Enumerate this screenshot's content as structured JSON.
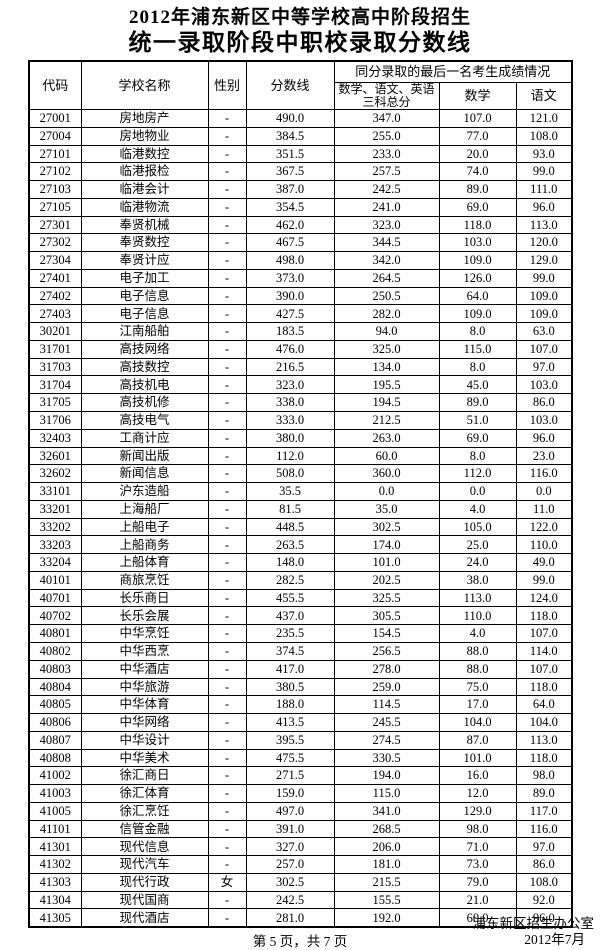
{
  "title": {
    "line1": "2012年浦东新区中等学校高中阶段招生",
    "line2": "统一录取阶段中职校录取分数线"
  },
  "table": {
    "headers": {
      "code": "代码",
      "school": "学校名称",
      "gender": "性别",
      "cutoff": "分数线",
      "group": "同分录取的最后一名考生成绩情况",
      "total3": "数学、语文、英语三科总分",
      "math": "数学",
      "chinese": "语文"
    },
    "rows": [
      [
        "27001",
        "房地房产",
        "-",
        "490.0",
        "347.0",
        "107.0",
        "121.0"
      ],
      [
        "27004",
        "房地物业",
        "-",
        "384.5",
        "255.0",
        "77.0",
        "108.0"
      ],
      [
        "27101",
        "临港数控",
        "-",
        "351.5",
        "233.0",
        "20.0",
        "93.0"
      ],
      [
        "27102",
        "临港报检",
        "-",
        "367.5",
        "257.5",
        "74.0",
        "99.0"
      ],
      [
        "27103",
        "临港会计",
        "-",
        "387.0",
        "242.5",
        "89.0",
        "111.0"
      ],
      [
        "27105",
        "临港物流",
        "-",
        "354.5",
        "241.0",
        "69.0",
        "96.0"
      ],
      [
        "27301",
        "奉贤机械",
        "-",
        "462.0",
        "323.0",
        "118.0",
        "113.0"
      ],
      [
        "27302",
        "奉贤数控",
        "-",
        "467.5",
        "344.5",
        "103.0",
        "120.0"
      ],
      [
        "27304",
        "奉贤计应",
        "-",
        "498.0",
        "342.0",
        "109.0",
        "129.0"
      ],
      [
        "27401",
        "电子加工",
        "-",
        "373.0",
        "264.5",
        "126.0",
        "99.0"
      ],
      [
        "27402",
        "电子信息",
        "-",
        "390.0",
        "250.5",
        "64.0",
        "109.0"
      ],
      [
        "27403",
        "电子信息",
        "-",
        "427.5",
        "282.0",
        "109.0",
        "109.0"
      ],
      [
        "30201",
        "江南船舶",
        "-",
        "183.5",
        "94.0",
        "8.0",
        "63.0"
      ],
      [
        "31701",
        "高技网络",
        "-",
        "476.0",
        "325.0",
        "115.0",
        "107.0"
      ],
      [
        "31703",
        "高技数控",
        "-",
        "216.5",
        "134.0",
        "8.0",
        "97.0"
      ],
      [
        "31704",
        "高技机电",
        "-",
        "323.0",
        "195.5",
        "45.0",
        "103.0"
      ],
      [
        "31705",
        "高技机修",
        "-",
        "338.0",
        "194.5",
        "89.0",
        "86.0"
      ],
      [
        "31706",
        "高技电气",
        "-",
        "333.0",
        "212.5",
        "51.0",
        "103.0"
      ],
      [
        "32403",
        "工商计应",
        "-",
        "380.0",
        "263.0",
        "69.0",
        "96.0"
      ],
      [
        "32601",
        "新闻出版",
        "-",
        "112.0",
        "60.0",
        "8.0",
        "23.0"
      ],
      [
        "32602",
        "新闻信息",
        "-",
        "508.0",
        "360.0",
        "112.0",
        "116.0"
      ],
      [
        "33101",
        "沪东造船",
        "-",
        "35.5",
        "0.0",
        "0.0",
        "0.0"
      ],
      [
        "33201",
        "上海船厂",
        "-",
        "81.5",
        "35.0",
        "4.0",
        "11.0"
      ],
      [
        "33202",
        "上船电子",
        "-",
        "448.5",
        "302.5",
        "105.0",
        "122.0"
      ],
      [
        "33203",
        "上船商务",
        "-",
        "263.5",
        "174.0",
        "25.0",
        "110.0"
      ],
      [
        "33204",
        "上船体育",
        "-",
        "148.0",
        "101.0",
        "24.0",
        "49.0"
      ],
      [
        "40101",
        "商旅烹饪",
        "-",
        "282.5",
        "202.5",
        "38.0",
        "99.0"
      ],
      [
        "40701",
        "长乐商日",
        "-",
        "455.5",
        "325.5",
        "113.0",
        "124.0"
      ],
      [
        "40702",
        "长乐会展",
        "-",
        "437.0",
        "305.5",
        "110.0",
        "118.0"
      ],
      [
        "40801",
        "中华烹饪",
        "-",
        "235.5",
        "154.5",
        "4.0",
        "107.0"
      ],
      [
        "40802",
        "中华西烹",
        "-",
        "374.5",
        "256.5",
        "88.0",
        "114.0"
      ],
      [
        "40803",
        "中华酒店",
        "-",
        "417.0",
        "278.0",
        "88.0",
        "107.0"
      ],
      [
        "40804",
        "中华旅游",
        "-",
        "380.5",
        "259.0",
        "75.0",
        "118.0"
      ],
      [
        "40805",
        "中华体育",
        "-",
        "188.0",
        "114.5",
        "17.0",
        "64.0"
      ],
      [
        "40806",
        "中华网络",
        "-",
        "413.5",
        "245.5",
        "104.0",
        "104.0"
      ],
      [
        "40807",
        "中华设计",
        "-",
        "395.5",
        "274.5",
        "87.0",
        "113.0"
      ],
      [
        "40808",
        "中华美术",
        "-",
        "475.5",
        "330.5",
        "101.0",
        "118.0"
      ],
      [
        "41002",
        "徐汇商日",
        "-",
        "271.5",
        "194.0",
        "16.0",
        "98.0"
      ],
      [
        "41003",
        "徐汇体育",
        "-",
        "159.0",
        "115.0",
        "12.0",
        "89.0"
      ],
      [
        "41005",
        "徐汇烹饪",
        "-",
        "497.0",
        "341.0",
        "129.0",
        "117.0"
      ],
      [
        "41101",
        "信管金融",
        "-",
        "391.0",
        "268.5",
        "98.0",
        "116.0"
      ],
      [
        "41301",
        "现代信息",
        "-",
        "327.0",
        "206.0",
        "71.0",
        "97.0"
      ],
      [
        "41302",
        "现代汽车",
        "-",
        "257.0",
        "181.0",
        "73.0",
        "86.0"
      ],
      [
        "41303",
        "现代行政",
        "女",
        "302.5",
        "215.5",
        "79.0",
        "108.0"
      ],
      [
        "41304",
        "现代国商",
        "-",
        "242.5",
        "155.5",
        "21.0",
        "92.0"
      ],
      [
        "41305",
        "现代酒店",
        "-",
        "281.0",
        "192.0",
        "60.0",
        "96.0"
      ]
    ]
  },
  "footer": {
    "page": "第 5 页，共 7 页",
    "office": "浦东新区招生办公室",
    "date": "2012年7月"
  },
  "colors": {
    "text": "#000000",
    "background": "#ffffff",
    "border": "#000000"
  }
}
